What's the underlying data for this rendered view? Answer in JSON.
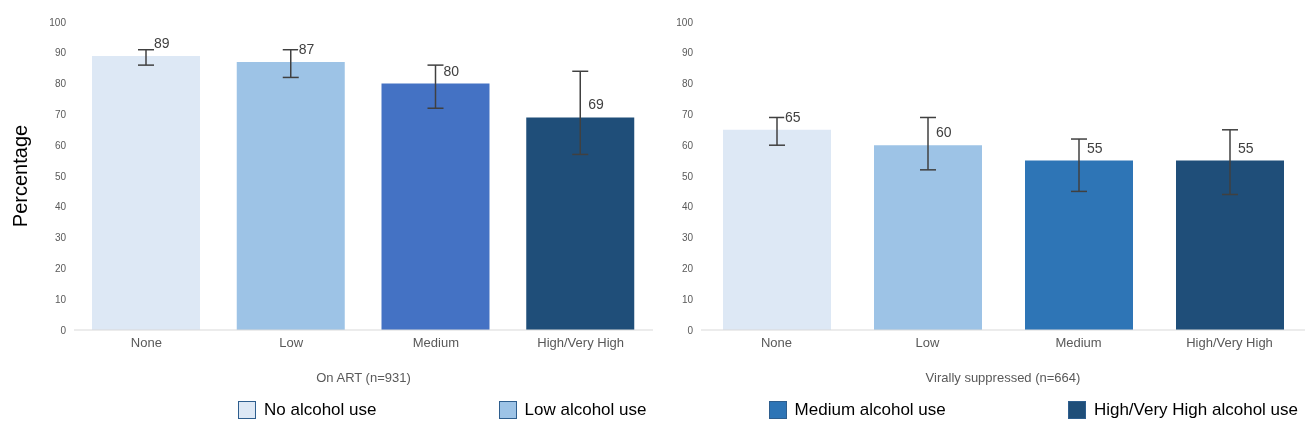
{
  "chart_data": [
    {
      "type": "bar",
      "ylabel": "Percentage",
      "xlabel": "On ART (n=931)",
      "categories": [
        "None",
        "Low",
        "Medium",
        "High/Very High"
      ],
      "ylim": [
        0,
        100
      ],
      "yticks": [
        0,
        10,
        20,
        30,
        40,
        50,
        60,
        70,
        80,
        90,
        100
      ],
      "data_labels": true,
      "series": [
        {
          "color": "#dde8f5",
          "values": [
            89,
            null,
            null,
            null
          ],
          "errors": [
            [
              86,
              91
            ],
            null,
            null,
            null
          ]
        },
        {
          "color": "#9dc3e6",
          "values": [
            null,
            87,
            null,
            null
          ],
          "errors": [
            null,
            [
              82,
              91
            ],
            null,
            null
          ]
        },
        {
          "color": "#4472c4",
          "values": [
            null,
            null,
            80,
            null
          ],
          "errors": [
            null,
            null,
            [
              72,
              86
            ],
            null
          ]
        },
        {
          "color": "#1f4e79",
          "values": [
            null,
            null,
            null,
            69
          ],
          "errors": [
            null,
            null,
            null,
            [
              57,
              84
            ]
          ]
        }
      ]
    },
    {
      "type": "bar",
      "xlabel": "Virally suppressed (n=664)",
      "categories": [
        "None",
        "Low",
        "Medium",
        "High/Very High"
      ],
      "ylim": [
        0,
        100
      ],
      "yticks": [
        0,
        10,
        20,
        30,
        40,
        50,
        60,
        70,
        80,
        90,
        100
      ],
      "data_labels": true,
      "legend": "bottom",
      "series": [
        {
          "name": "No alcohol use",
          "color": "#dde8f5",
          "values": [
            65,
            null,
            null,
            null
          ],
          "errors": [
            [
              60,
              69
            ],
            null,
            null,
            null
          ]
        },
        {
          "name": "Low alcohol use",
          "color": "#9dc3e6",
          "values": [
            null,
            60,
            null,
            null
          ],
          "errors": [
            null,
            [
              52,
              69
            ],
            null,
            null
          ]
        },
        {
          "name": "Medium alcohol use",
          "color": "#2e75b6",
          "values": [
            null,
            null,
            55,
            null
          ],
          "errors": [
            null,
            null,
            [
              45,
              62
            ],
            null
          ]
        },
        {
          "name": "High/Very High alcohol use",
          "color": "#1f4e79",
          "values": [
            null,
            null,
            null,
            55
          ],
          "errors": [
            null,
            null,
            null,
            [
              44,
              65
            ]
          ]
        }
      ]
    }
  ]
}
